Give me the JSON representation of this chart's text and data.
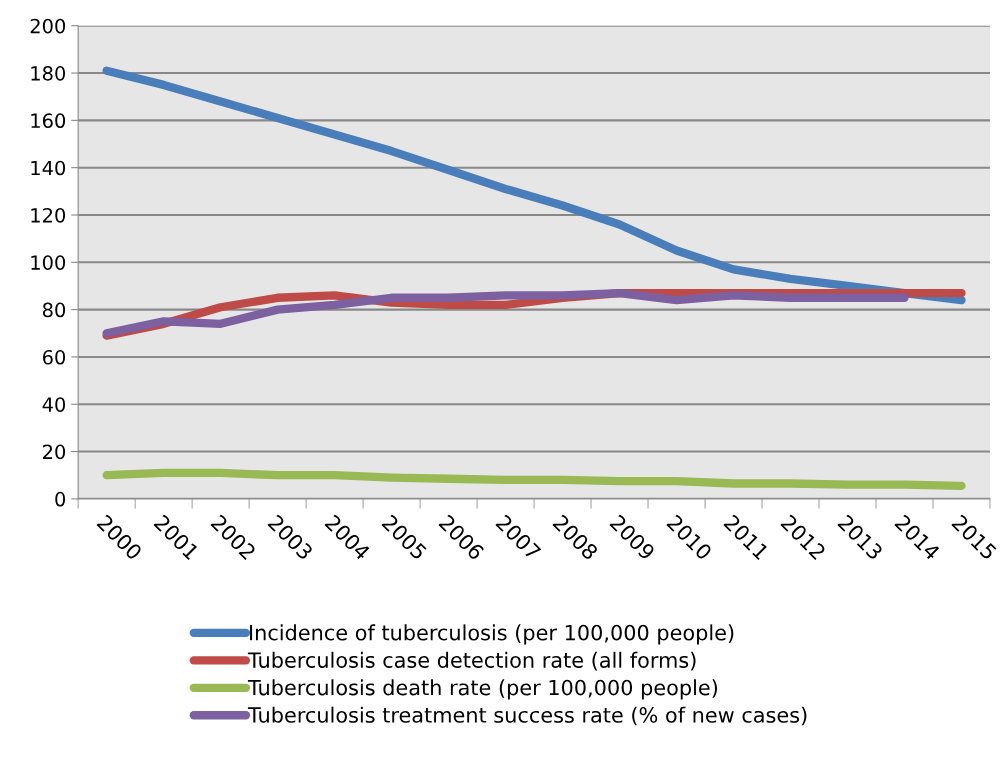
{
  "chart_data": {
    "type": "line",
    "categories": [
      "2000",
      "2001",
      "2002",
      "2003",
      "2004",
      "2005",
      "2006",
      "2007",
      "2008",
      "2009",
      "2010",
      "2011",
      "2012",
      "2013",
      "2014",
      "2015"
    ],
    "series": [
      {
        "name": "Incidence of tuberculosis (per 100,000 people)",
        "color": "#4a7ebb",
        "values": [
          181,
          175,
          168,
          161,
          154,
          147,
          139,
          131,
          124,
          116,
          105,
          97,
          93,
          90,
          87,
          84
        ]
      },
      {
        "name": "Tuberculosis case detection rate (all forms)",
        "color": "#be4b48",
        "values": [
          69,
          74,
          81,
          85,
          86,
          83,
          82,
          82,
          85,
          87,
          87,
          87,
          87,
          87,
          87,
          87
        ]
      },
      {
        "name": "Tuberculosis death rate (per 100,000 people)",
        "color": "#98b954",
        "values": [
          10,
          11,
          11,
          10,
          10,
          9,
          8.5,
          8,
          8,
          7.5,
          7.5,
          6.5,
          6.5,
          6,
          6,
          5.5
        ]
      },
      {
        "name": "Tuberculosis treatment success rate (% of new cases)",
        "color": "#7d60a0",
        "values": [
          70,
          75,
          74,
          80,
          82,
          85,
          85,
          86,
          86,
          87,
          84,
          86,
          85,
          85,
          85,
          null
        ]
      }
    ],
    "ylim": [
      0,
      200
    ],
    "yticks": [
      0,
      20,
      40,
      60,
      80,
      100,
      120,
      140,
      160,
      180,
      200
    ],
    "grid": "y",
    "legend": "bottom",
    "marker": "none",
    "line_style": "solid"
  }
}
